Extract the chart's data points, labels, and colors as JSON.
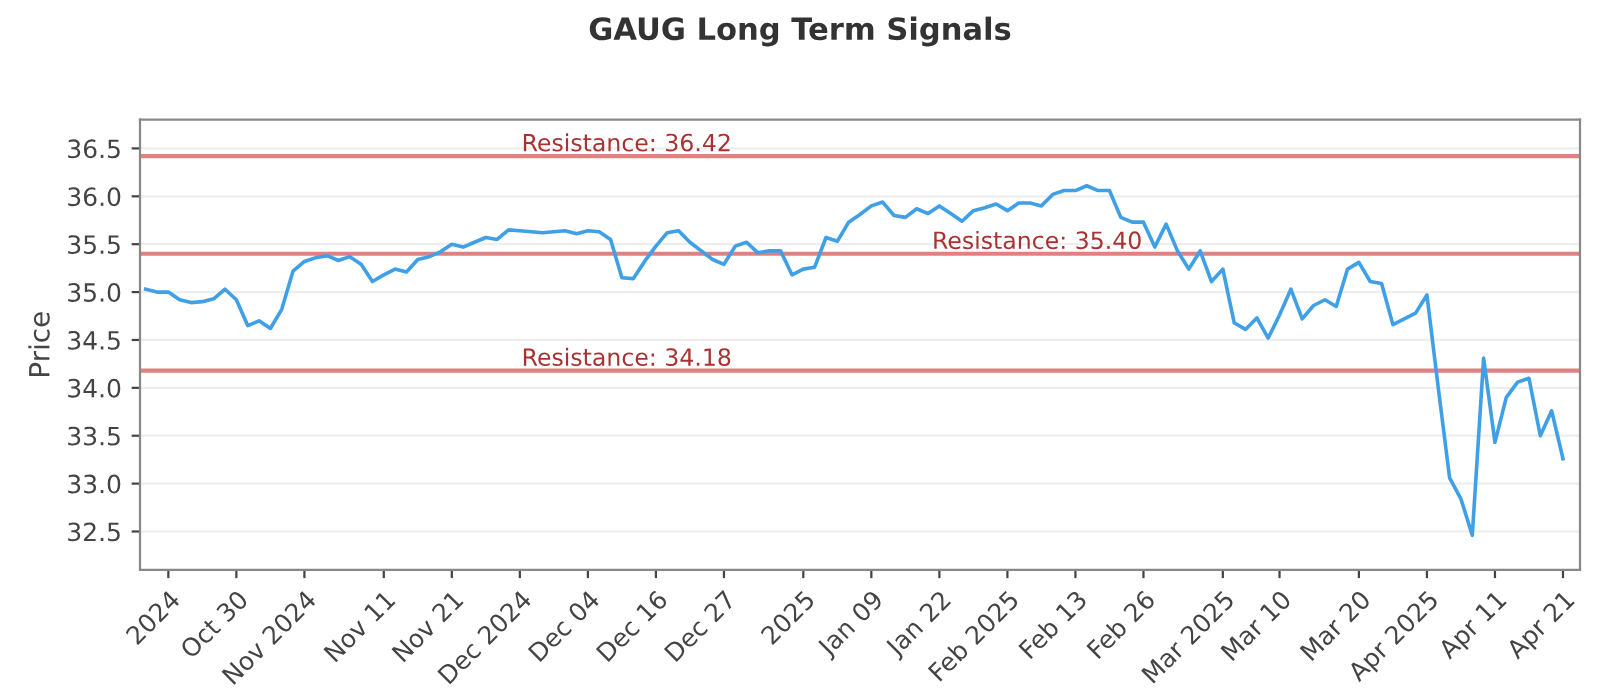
{
  "chart_data": {
    "type": "line",
    "title": "GAUG Long Term Signals",
    "ylabel": "Price",
    "categories": [
      null,
      null,
      "2024",
      null,
      null,
      null,
      null,
      null,
      "Oct 30",
      null,
      null,
      null,
      null,
      null,
      "Nov 2024",
      null,
      null,
      null,
      null,
      null,
      null,
      "Nov 11",
      null,
      null,
      null,
      null,
      null,
      "Nov 21",
      null,
      null,
      null,
      null,
      null,
      "Dec 2024",
      null,
      null,
      null,
      null,
      null,
      "Dec 04",
      null,
      null,
      null,
      null,
      null,
      "Dec 16",
      null,
      null,
      null,
      null,
      null,
      "Dec 27",
      null,
      null,
      null,
      null,
      null,
      null,
      "2025",
      null,
      null,
      null,
      null,
      null,
      "Jan 09",
      null,
      null,
      null,
      null,
      null,
      "Jan 22",
      null,
      null,
      null,
      null,
      null,
      "Feb 2025",
      null,
      null,
      null,
      null,
      null,
      "Feb 13",
      null,
      null,
      null,
      null,
      null,
      "Feb 26",
      null,
      null,
      null,
      null,
      null,
      null,
      "Mar 2025",
      null,
      null,
      null,
      null,
      "Mar 10",
      null,
      null,
      null,
      null,
      null,
      null,
      "Mar 20",
      null,
      null,
      null,
      null,
      null,
      "Apr 2025",
      null,
      null,
      null,
      null,
      null,
      "Apr 11",
      null,
      null,
      null,
      null,
      null,
      "Apr 21"
    ],
    "series": [
      {
        "color": "#3fa0e8",
        "values": [
          35.03,
          35.0,
          35.0,
          34.92,
          34.89,
          34.9,
          34.93,
          35.03,
          34.92,
          34.65,
          34.7,
          34.62,
          34.82,
          35.22,
          35.32,
          35.36,
          35.38,
          35.33,
          35.37,
          35.29,
          35.11,
          35.18,
          35.24,
          35.21,
          35.34,
          35.37,
          35.42,
          35.5,
          35.47,
          35.52,
          35.57,
          35.55,
          35.65,
          35.64,
          35.63,
          35.62,
          35.63,
          35.64,
          35.61,
          35.64,
          35.63,
          35.55,
          35.15,
          35.14,
          35.32,
          35.48,
          35.62,
          35.64,
          35.52,
          35.43,
          35.34,
          35.29,
          35.48,
          35.52,
          35.41,
          35.43,
          35.43,
          35.18,
          35.24,
          35.26,
          35.57,
          35.53,
          35.73,
          35.81,
          35.9,
          35.94,
          35.8,
          35.78,
          35.87,
          35.82,
          35.9,
          35.82,
          35.74,
          35.85,
          35.88,
          35.92,
          35.85,
          35.93,
          35.93,
          35.9,
          36.02,
          36.06,
          36.06,
          36.11,
          36.06,
          36.06,
          35.78,
          35.73,
          35.73,
          35.47,
          35.71,
          35.43,
          35.24,
          35.43,
          35.11,
          35.24,
          34.68,
          34.61,
          34.73,
          34.52,
          34.76,
          35.03,
          34.72,
          34.86,
          34.92,
          34.85,
          35.24,
          35.31,
          35.11,
          35.09,
          34.66,
          34.72,
          34.78,
          34.97,
          34.0,
          33.06,
          32.84,
          32.46,
          34.31,
          33.43,
          33.9,
          34.06,
          34.1,
          33.5,
          33.76,
          33.26
        ]
      }
    ],
    "ylim": [
      32.1,
      36.8
    ],
    "yticks": [
      32.5,
      {
        "value": 33,
        "label": "33.0"
      },
      33.5,
      {
        "value": 34,
        "label": "34.0"
      },
      34.5,
      {
        "value": 35,
        "label": "35.0"
      },
      35.5,
      {
        "value": 36,
        "label": "36.0"
      },
      36.5
    ],
    "ref_lines": [
      {
        "axis": "y",
        "value": 36.42,
        "label": "Resistance: 36.42",
        "color": "#e08080"
      },
      {
        "axis": "y",
        "value": 35.4,
        "label": "Resistance: 35.40",
        "color": "#e08080"
      },
      {
        "axis": "y",
        "value": 34.18,
        "label": "Resistance: 34.18",
        "color": "#e08080"
      }
    ],
    "grid": "y",
    "marker": "none",
    "line_style": "solid"
  }
}
